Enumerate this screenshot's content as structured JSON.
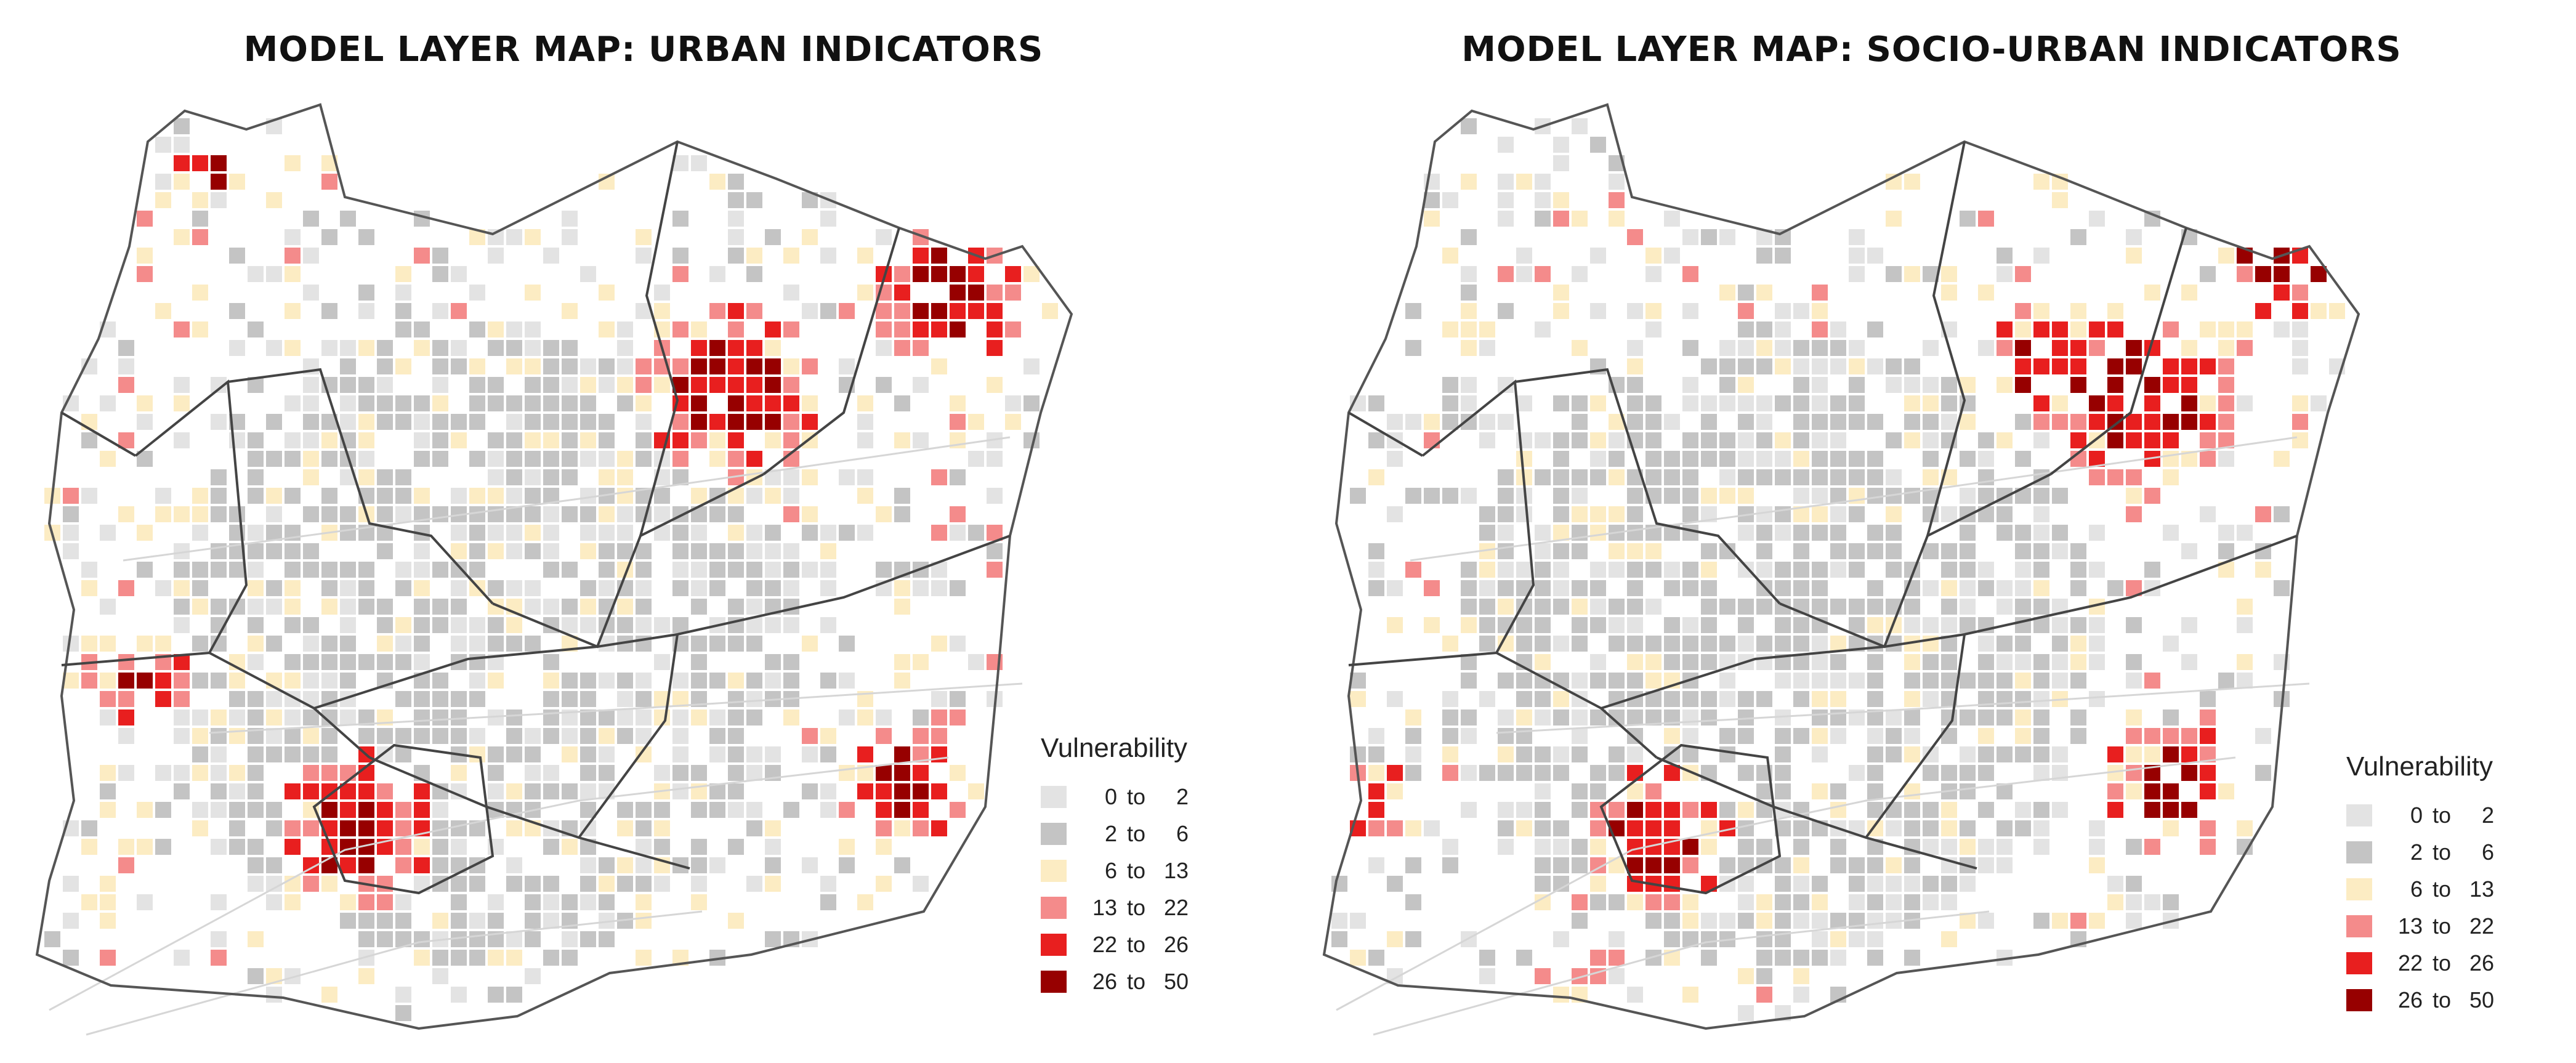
{
  "maps": [
    {
      "title": "MODEL LAYER MAP: URBAN INDICATORS",
      "legend": {
        "title": "Vulnerability",
        "classes": [
          {
            "lo": "0",
            "to": "to",
            "hi": "2",
            "color": "#e3e3e3"
          },
          {
            "lo": "2",
            "to": "to",
            "hi": "6",
            "color": "#c4c4c4"
          },
          {
            "lo": "6",
            "to": "to",
            "hi": "13",
            "color": "#fcecc3"
          },
          {
            "lo": "13",
            "to": "to",
            "hi": "22",
            "color": "#f48b8b"
          },
          {
            "lo": "22",
            "to": "to",
            "hi": "26",
            "color": "#e81f1f"
          },
          {
            "lo": "26",
            "to": "to",
            "hi": "50",
            "color": "#970000"
          }
        ]
      }
    },
    {
      "title": "MODEL LAYER MAP: SOCIO-URBAN INDICATORS",
      "legend": {
        "title": "Vulnerability",
        "classes": [
          {
            "lo": "0",
            "to": "to",
            "hi": "2",
            "color": "#e3e3e3"
          },
          {
            "lo": "2",
            "to": "to",
            "hi": "6",
            "color": "#c4c4c4"
          },
          {
            "lo": "6",
            "to": "to",
            "hi": "13",
            "color": "#fcecc3"
          },
          {
            "lo": "13",
            "to": "to",
            "hi": "22",
            "color": "#f48b8b"
          },
          {
            "lo": "22",
            "to": "to",
            "hi": "26",
            "color": "#e81f1f"
          },
          {
            "lo": "26",
            "to": "to",
            "hi": "50",
            "color": "#970000"
          }
        ]
      }
    }
  ]
}
